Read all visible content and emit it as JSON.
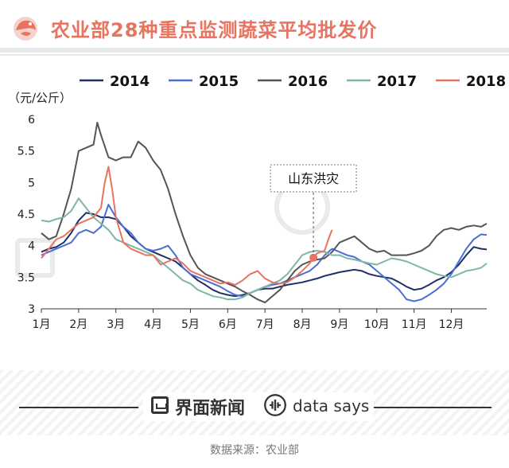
{
  "header": {
    "title": "农业部28种重点监测蔬菜平均批发价"
  },
  "footer": {
    "brand_cn": "界面新闻",
    "brand_en": "data says",
    "source": "数据来源：农业部"
  },
  "colors": {
    "accent": "#e8735f",
    "2014": "#1f2f66",
    "2015": "#4a6fd4",
    "2016": "#555555",
    "2017": "#7fb6a6",
    "2018": "#e8735f"
  },
  "chart_data": {
    "type": "line",
    "ylabel": "（元/公斤）",
    "ylim": [
      3,
      6
    ],
    "yticks": [
      "3",
      "3.5",
      "4",
      "4.5",
      "5",
      "5.5",
      "6"
    ],
    "xticks": [
      "1月",
      "2月",
      "3月",
      "4月",
      "5月",
      "6月",
      "7月",
      "8月",
      "9月",
      "10月",
      "11月",
      "12月"
    ],
    "xlim": [
      1,
      12.95
    ],
    "legend_position": "top",
    "annotation": {
      "text": "山东洪灾",
      "x": 8.3,
      "y": 3.81
    },
    "series": [
      {
        "name": "2014",
        "color": "#1f2f66",
        "x": [
          1.0,
          1.2,
          1.4,
          1.6,
          1.8,
          2.0,
          2.2,
          2.4,
          2.6,
          2.8,
          3.0,
          3.2,
          3.4,
          3.6,
          3.8,
          4.0,
          4.2,
          4.4,
          4.6,
          4.8,
          5.0,
          5.2,
          5.4,
          5.6,
          5.8,
          6.0,
          6.2,
          6.4,
          6.6,
          6.8,
          7.0,
          7.2,
          7.4,
          7.6,
          7.8,
          8.0,
          8.2,
          8.4,
          8.6,
          8.8,
          9.0,
          9.2,
          9.4,
          9.6,
          9.8,
          10.0,
          10.2,
          10.4,
          10.6,
          10.8,
          11.0,
          11.2,
          11.4,
          11.6,
          11.8,
          12.0,
          12.2,
          12.4,
          12.6,
          12.8,
          12.95
        ],
        "y": [
          3.9,
          3.95,
          3.98,
          4.05,
          4.2,
          4.4,
          4.52,
          4.5,
          4.45,
          4.45,
          4.42,
          4.3,
          4.15,
          4.05,
          3.95,
          3.9,
          3.85,
          3.8,
          3.75,
          3.65,
          3.55,
          3.45,
          3.38,
          3.3,
          3.25,
          3.22,
          3.2,
          3.22,
          3.25,
          3.3,
          3.32,
          3.32,
          3.35,
          3.38,
          3.4,
          3.42,
          3.45,
          3.48,
          3.52,
          3.55,
          3.58,
          3.6,
          3.62,
          3.6,
          3.55,
          3.52,
          3.5,
          3.48,
          3.42,
          3.35,
          3.3,
          3.32,
          3.38,
          3.45,
          3.5,
          3.58,
          3.7,
          3.85,
          3.98,
          3.95,
          3.94
        ]
      },
      {
        "name": "2015",
        "color": "#4a6fd4",
        "x": [
          1.0,
          1.2,
          1.4,
          1.6,
          1.8,
          2.0,
          2.2,
          2.4,
          2.6,
          2.8,
          3.0,
          3.2,
          3.4,
          3.6,
          3.8,
          4.0,
          4.2,
          4.4,
          4.6,
          4.8,
          5.0,
          5.2,
          5.4,
          5.6,
          5.8,
          6.0,
          6.2,
          6.4,
          6.6,
          6.8,
          7.0,
          7.2,
          7.4,
          7.6,
          7.8,
          8.0,
          8.2,
          8.4,
          8.6,
          8.8,
          9.0,
          9.2,
          9.4,
          9.6,
          9.8,
          10.0,
          10.2,
          10.4,
          10.6,
          10.8,
          11.0,
          11.2,
          11.4,
          11.6,
          11.8,
          12.0,
          12.2,
          12.4,
          12.6,
          12.8,
          12.95
        ],
        "y": [
          3.85,
          3.9,
          3.95,
          4.0,
          4.05,
          4.2,
          4.25,
          4.2,
          4.3,
          4.65,
          4.45,
          4.3,
          4.2,
          4.05,
          3.95,
          3.92,
          3.95,
          4.0,
          3.85,
          3.65,
          3.55,
          3.5,
          3.45,
          3.4,
          3.35,
          3.28,
          3.22,
          3.2,
          3.25,
          3.3,
          3.35,
          3.38,
          3.4,
          3.45,
          3.5,
          3.55,
          3.6,
          3.7,
          3.85,
          3.95,
          3.9,
          3.85,
          3.82,
          3.75,
          3.7,
          3.6,
          3.5,
          3.4,
          3.3,
          3.15,
          3.12,
          3.15,
          3.22,
          3.3,
          3.4,
          3.55,
          3.75,
          3.95,
          4.1,
          4.18,
          4.17
        ]
      },
      {
        "name": "2016",
        "color": "#555555",
        "x": [
          1.0,
          1.2,
          1.4,
          1.6,
          1.8,
          2.0,
          2.2,
          2.4,
          2.5,
          2.6,
          2.8,
          3.0,
          3.2,
          3.4,
          3.6,
          3.8,
          4.0,
          4.2,
          4.4,
          4.6,
          4.8,
          5.0,
          5.2,
          5.4,
          5.6,
          5.8,
          6.0,
          6.2,
          6.4,
          6.6,
          6.8,
          7.0,
          7.2,
          7.4,
          7.6,
          7.8,
          8.0,
          8.2,
          8.4,
          8.6,
          8.8,
          9.0,
          9.2,
          9.4,
          9.6,
          9.8,
          10.0,
          10.2,
          10.4,
          10.6,
          10.8,
          11.0,
          11.2,
          11.4,
          11.6,
          11.8,
          12.0,
          12.2,
          12.4,
          12.6,
          12.8,
          12.95
        ],
        "y": [
          4.2,
          4.1,
          4.15,
          4.5,
          4.9,
          5.5,
          5.55,
          5.6,
          5.95,
          5.75,
          5.4,
          5.35,
          5.4,
          5.4,
          5.65,
          5.55,
          5.35,
          5.2,
          4.9,
          4.5,
          4.15,
          3.85,
          3.65,
          3.55,
          3.5,
          3.45,
          3.4,
          3.35,
          3.28,
          3.22,
          3.15,
          3.1,
          3.2,
          3.3,
          3.45,
          3.6,
          3.7,
          3.75,
          3.78,
          3.8,
          3.9,
          4.05,
          4.1,
          4.15,
          4.05,
          3.95,
          3.9,
          3.92,
          3.85,
          3.85,
          3.85,
          3.88,
          3.92,
          4.0,
          4.15,
          4.25,
          4.28,
          4.25,
          4.3,
          4.32,
          4.3,
          4.35
        ]
      },
      {
        "name": "2017",
        "color": "#7fb6a6",
        "x": [
          1.0,
          1.2,
          1.4,
          1.6,
          1.8,
          2.0,
          2.2,
          2.4,
          2.6,
          2.8,
          3.0,
          3.2,
          3.4,
          3.6,
          3.8,
          4.0,
          4.2,
          4.4,
          4.6,
          4.8,
          5.0,
          5.2,
          5.4,
          5.6,
          5.8,
          6.0,
          6.2,
          6.4,
          6.6,
          6.8,
          7.0,
          7.2,
          7.4,
          7.6,
          7.8,
          8.0,
          8.2,
          8.4,
          8.6,
          8.8,
          9.0,
          9.2,
          9.4,
          9.6,
          9.8,
          10.0,
          10.2,
          10.4,
          10.6,
          10.8,
          11.0,
          11.2,
          11.4,
          11.6,
          11.8,
          12.0,
          12.2,
          12.4,
          12.6,
          12.8,
          12.95
        ],
        "y": [
          4.4,
          4.38,
          4.42,
          4.45,
          4.55,
          4.75,
          4.6,
          4.45,
          4.35,
          4.25,
          4.1,
          4.05,
          4.0,
          3.95,
          3.9,
          3.85,
          3.75,
          3.65,
          3.55,
          3.45,
          3.4,
          3.3,
          3.25,
          3.2,
          3.18,
          3.15,
          3.15,
          3.18,
          3.25,
          3.3,
          3.35,
          3.4,
          3.45,
          3.55,
          3.7,
          3.85,
          3.9,
          3.92,
          3.9,
          3.85,
          3.85,
          3.8,
          3.78,
          3.75,
          3.72,
          3.7,
          3.75,
          3.8,
          3.78,
          3.75,
          3.7,
          3.65,
          3.6,
          3.55,
          3.52,
          3.5,
          3.55,
          3.6,
          3.62,
          3.65,
          3.72
        ]
      },
      {
        "name": "2018",
        "color": "#e8735f",
        "x": [
          1.0,
          1.2,
          1.4,
          1.6,
          1.8,
          2.0,
          2.2,
          2.4,
          2.6,
          2.7,
          2.8,
          2.9,
          3.0,
          3.2,
          3.4,
          3.6,
          3.8,
          4.0,
          4.2,
          4.4,
          4.6,
          4.8,
          5.0,
          5.2,
          5.4,
          5.6,
          5.8,
          6.0,
          6.2,
          6.4,
          6.6,
          6.8,
          7.0,
          7.2,
          7.4,
          7.6,
          7.8,
          8.0,
          8.2,
          8.3,
          8.4,
          8.6,
          8.7,
          8.8
        ],
        "y": [
          3.8,
          3.95,
          4.1,
          4.15,
          4.25,
          4.35,
          4.4,
          4.45,
          4.6,
          5.0,
          5.25,
          4.9,
          4.45,
          4.05,
          3.95,
          3.9,
          3.85,
          3.85,
          3.7,
          3.75,
          3.8,
          3.72,
          3.6,
          3.55,
          3.5,
          3.45,
          3.4,
          3.42,
          3.38,
          3.45,
          3.55,
          3.6,
          3.48,
          3.42,
          3.4,
          3.42,
          3.5,
          3.6,
          3.72,
          3.81,
          3.88,
          3.92,
          4.1,
          4.25
        ]
      }
    ]
  }
}
